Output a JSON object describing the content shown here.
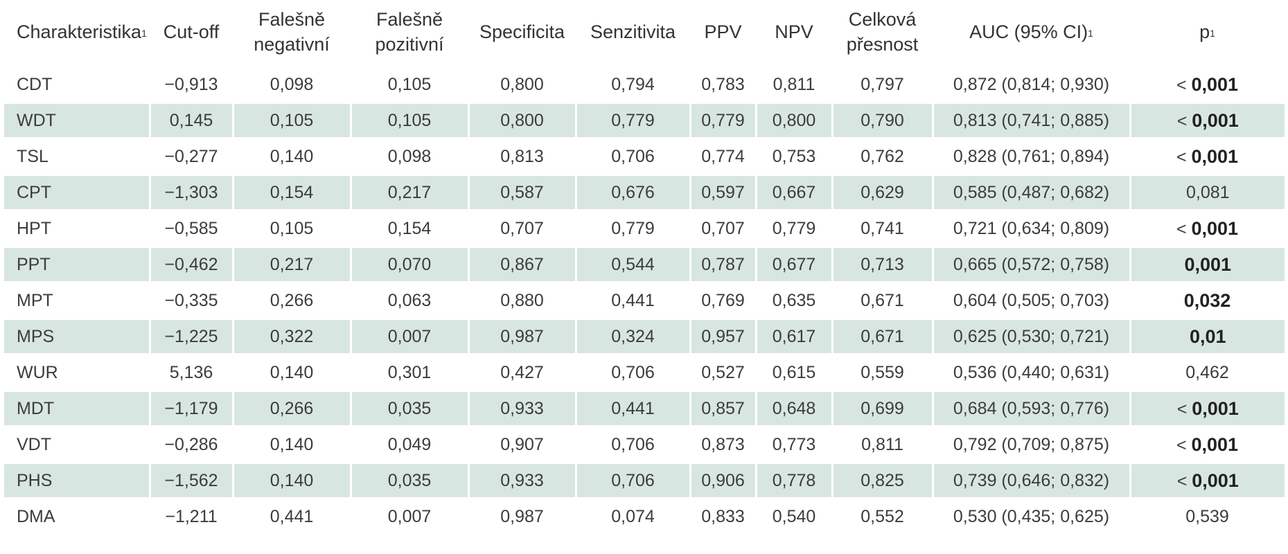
{
  "headers": [
    {
      "text": "Charakteristika",
      "sup": "1"
    },
    {
      "text": "Cut-off",
      "sup": ""
    },
    {
      "text": "Falešně negativní",
      "sup": ""
    },
    {
      "text": "Falešně pozitivní",
      "sup": ""
    },
    {
      "text": "Specificita",
      "sup": ""
    },
    {
      "text": "Senzitivita",
      "sup": ""
    },
    {
      "text": "PPV",
      "sup": ""
    },
    {
      "text": "NPV",
      "sup": ""
    },
    {
      "text": "Celková přesnost",
      "sup": ""
    },
    {
      "text": "AUC (95% CI)",
      "sup": "1"
    },
    {
      "text": "p",
      "sup": "1"
    }
  ],
  "rows": [
    {
      "cells": [
        "CDT",
        "−0,913",
        "0,098",
        "0,105",
        "0,800",
        "0,794",
        "0,783",
        "0,811",
        "0,797",
        "0,872 (0,814; 0,930)"
      ],
      "p_prefix": "< ",
      "p": "0,001",
      "p_bold": true
    },
    {
      "cells": [
        "WDT",
        "0,145",
        "0,105",
        "0,105",
        "0,800",
        "0,779",
        "0,779",
        "0,800",
        "0,790",
        "0,813 (0,741; 0,885)"
      ],
      "p_prefix": "< ",
      "p": "0,001",
      "p_bold": true
    },
    {
      "cells": [
        "TSL",
        "−0,277",
        "0,140",
        "0,098",
        "0,813",
        "0,706",
        "0,774",
        "0,753",
        "0,762",
        "0,828 (0,761; 0,894)"
      ],
      "p_prefix": "< ",
      "p": "0,001",
      "p_bold": true
    },
    {
      "cells": [
        "CPT",
        "−1,303",
        "0,154",
        "0,217",
        "0,587",
        "0,676",
        "0,597",
        "0,667",
        "0,629",
        "0,585 (0,487; 0,682)"
      ],
      "p_prefix": "",
      "p": "0,081",
      "p_bold": false
    },
    {
      "cells": [
        "HPT",
        "−0,585",
        "0,105",
        "0,154",
        "0,707",
        "0,779",
        "0,707",
        "0,779",
        "0,741",
        "0,721 (0,634; 0,809)"
      ],
      "p_prefix": "< ",
      "p": "0,001",
      "p_bold": true
    },
    {
      "cells": [
        "PPT",
        "−0,462",
        "0,217",
        "0,070",
        "0,867",
        "0,544",
        "0,787",
        "0,677",
        "0,713",
        "0,665 (0,572; 0,758)"
      ],
      "p_prefix": "",
      "p": "0,001",
      "p_bold": true
    },
    {
      "cells": [
        "MPT",
        "−0,335",
        "0,266",
        "0,063",
        "0,880",
        "0,441",
        "0,769",
        "0,635",
        "0,671",
        "0,604 (0,505; 0,703)"
      ],
      "p_prefix": "",
      "p": "0,032",
      "p_bold": true
    },
    {
      "cells": [
        "MPS",
        "−1,225",
        "0,322",
        "0,007",
        "0,987",
        "0,324",
        "0,957",
        "0,617",
        "0,671",
        "0,625 (0,530; 0,721)"
      ],
      "p_prefix": "",
      "p": "0,01",
      "p_bold": true
    },
    {
      "cells": [
        "WUR",
        "5,136",
        "0,140",
        "0,301",
        "0,427",
        "0,706",
        "0,527",
        "0,615",
        "0,559",
        "0,536 (0,440; 0,631)"
      ],
      "p_prefix": "",
      "p": "0,462",
      "p_bold": false
    },
    {
      "cells": [
        "MDT",
        "−1,179",
        "0,266",
        "0,035",
        "0,933",
        "0,441",
        "0,857",
        "0,648",
        "0,699",
        "0,684 (0,593; 0,776)"
      ],
      "p_prefix": "< ",
      "p": "0,001",
      "p_bold": true
    },
    {
      "cells": [
        "VDT",
        "−0,286",
        "0,140",
        "0,049",
        "0,907",
        "0,706",
        "0,873",
        "0,773",
        "0,811",
        "0,792 (0,709; 0,875)"
      ],
      "p_prefix": "< ",
      "p": "0,001",
      "p_bold": true
    },
    {
      "cells": [
        "PHS",
        "−1,562",
        "0,140",
        "0,035",
        "0,933",
        "0,706",
        "0,906",
        "0,778",
        "0,825",
        "0,739 (0,646; 0,832)"
      ],
      "p_prefix": "< ",
      "p": "0,001",
      "p_bold": true
    },
    {
      "cells": [
        "DMA",
        "−1,211",
        "0,441",
        "0,007",
        "0,987",
        "0,074",
        "0,833",
        "0,540",
        "0,552",
        "0,530 (0,435; 0,625)"
      ],
      "p_prefix": "",
      "p": "0,539",
      "p_bold": false
    }
  ],
  "colors": {
    "shade": "#d8e6e1",
    "text": "#333333",
    "rule": "#5a5a5a"
  }
}
